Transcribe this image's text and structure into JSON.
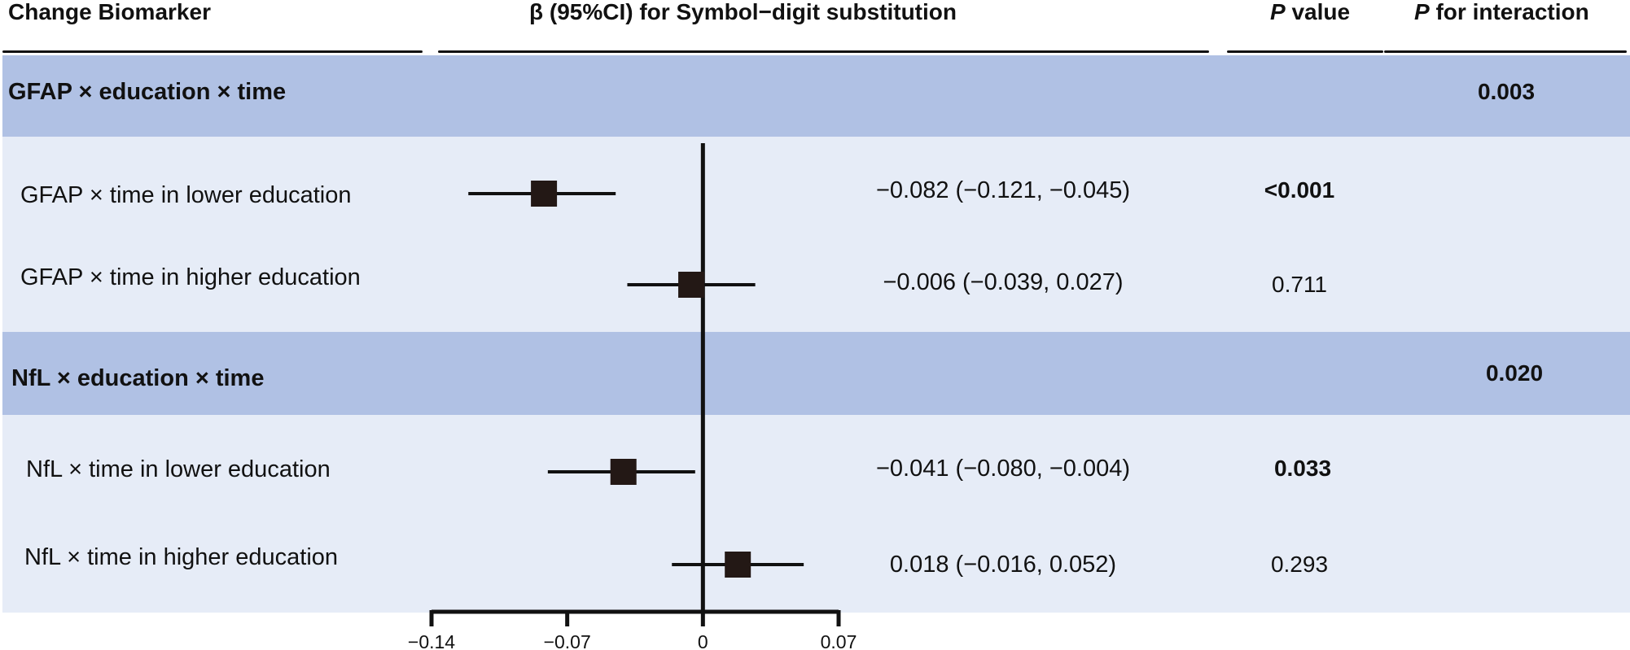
{
  "headers": {
    "biomarker": "Change Biomarker",
    "beta": "β (95%CI) for Symbol−digit substitution",
    "p_italic": "P",
    "p_rest": " value",
    "pint_italic": "P",
    "pint_rest": " for interaction"
  },
  "groups": [
    {
      "label": "GFAP × education × time",
      "p_interaction": "0.003"
    },
    {
      "label": "NfL × education × time",
      "p_interaction": "0.020"
    }
  ],
  "rows": [
    {
      "label": "GFAP × time in lower education",
      "ci_text": "−0.082 (−0.121, −0.045)",
      "p": "<0.001",
      "p_bold": true
    },
    {
      "label": "GFAP × time in higher education",
      "ci_text": "−0.006 (−0.039,  0.027)",
      "p": "0.711",
      "p_bold": false
    },
    {
      "label": "NfL × time in lower education",
      "ci_text": "−0.041 (−0.080, −0.004)",
      "p": "0.033",
      "p_bold": true
    },
    {
      "label": "NfL × time in higher education",
      "ci_text": "0.018 (−0.016,  0.052)",
      "p": "0.293",
      "p_bold": false
    }
  ],
  "chart_data": {
    "type": "scatter",
    "subtype": "forest",
    "title": "β (95%CI) for Symbol−digit substitution",
    "xlabel": "",
    "ylabel": "",
    "xlim": [
      -0.14,
      0.07
    ],
    "ticks": [
      -0.14,
      -0.07,
      0,
      0.07
    ],
    "tick_labels": [
      "−0.14",
      "−0.07",
      "0",
      "0.07"
    ],
    "reference_line": 0,
    "series": [
      {
        "name": "GFAP × time in lower education",
        "estimate": -0.082,
        "lower": -0.121,
        "upper": -0.045
      },
      {
        "name": "GFAP × time in higher education",
        "estimate": -0.006,
        "lower": -0.039,
        "upper": 0.027
      },
      {
        "name": "NfL × time in lower education",
        "estimate": -0.041,
        "lower": -0.08,
        "upper": -0.004
      },
      {
        "name": "NfL × time in higher education",
        "estimate": 0.018,
        "lower": -0.016,
        "upper": 0.052
      }
    ]
  }
}
